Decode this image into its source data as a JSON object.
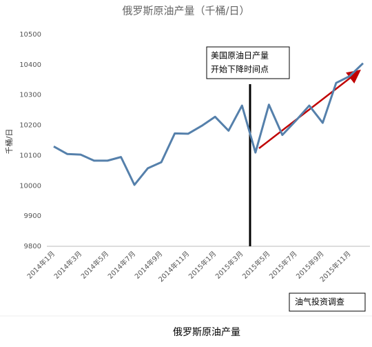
{
  "chart_data": {
    "type": "line",
    "title": "俄罗斯原油产量（千桶/日）",
    "y_label": "千桶/日",
    "categories": [
      "2014年1月",
      null,
      "2014年3月",
      null,
      "2014年5月",
      null,
      "2014年7月",
      null,
      "2014年9月",
      null,
      "2014年11月",
      null,
      "2015年1月",
      null,
      "2015年3月",
      null,
      "2015年5月",
      null,
      "2015年7月",
      null,
      "2015年9月",
      null,
      "2015年11月",
      null
    ],
    "series": [
      {
        "name": "俄罗斯原油产量",
        "color": "#5580ab",
        "values": [
          10130,
          10105,
          10103,
          10083,
          10083,
          10095,
          10003,
          10058,
          10078,
          10173,
          10172,
          10198,
          10228,
          10182,
          10265,
          10110,
          10268,
          10168,
          10215,
          10265,
          10208,
          10340,
          10362,
          10405
        ]
      }
    ],
    "ylim": [
      9800,
      10500
    ],
    "yticks": [
      9800,
      9900,
      10000,
      10100,
      10200,
      10300,
      10400,
      10500
    ],
    "annotation": [
      "美国原油日产量",
      "开始下降时间点"
    ],
    "source_box": "油气投资调查",
    "caption": "俄罗斯原油产量"
  }
}
